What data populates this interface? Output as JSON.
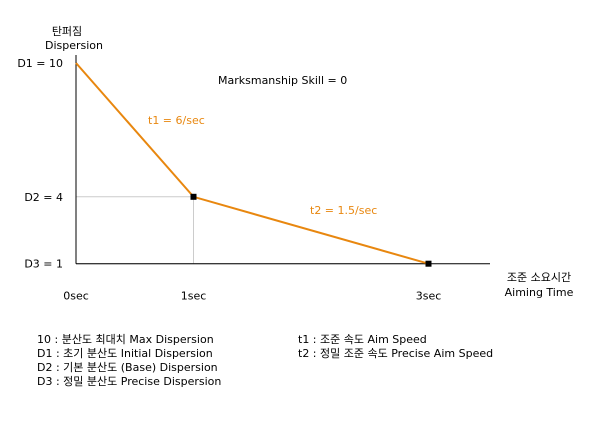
{
  "chart_data": {
    "type": "line",
    "ylabel_ko": "탄퍼짐",
    "ylabel": "Dispersion",
    "xlabel_ko": "조준 소요시간",
    "xlabel": "Aiming Time",
    "annotation": "Marksmanship Skill = 0",
    "x_ticks": [
      "0sec",
      "1sec",
      "3sec"
    ],
    "x_tick_values": [
      0,
      1,
      3
    ],
    "y_ticks": [
      "D1 = 10",
      "D2 = 4",
      "D3 = 1"
    ],
    "y_tick_values": [
      10,
      4,
      1
    ],
    "xlim": [
      0,
      3.5
    ],
    "ylim": [
      0,
      10
    ],
    "series": [
      {
        "x": [
          0,
          1,
          3
        ],
        "y": [
          10,
          4,
          1
        ],
        "color": "#e8870f"
      }
    ],
    "markers": [
      {
        "x": 1,
        "y": 4
      },
      {
        "x": 3,
        "y": 1
      }
    ],
    "segment_labels": [
      "t1 = 6/sec",
      "t2 = 1.5/sec"
    ],
    "guide_color": "#cccccc"
  },
  "legend_left": [
    "10 : 분산도 최대치 Max Dispersion",
    "D1 : 초기 분산도 Initial Dispersion",
    "D2 : 기본 분산도 (Base) Dispersion",
    "D3 : 정밀 분산도 Precise Dispersion"
  ],
  "legend_right": [
    "t1 : 조준 속도 Aim Speed",
    "t2 : 정밀 조준 속도 Precise Aim Speed"
  ]
}
